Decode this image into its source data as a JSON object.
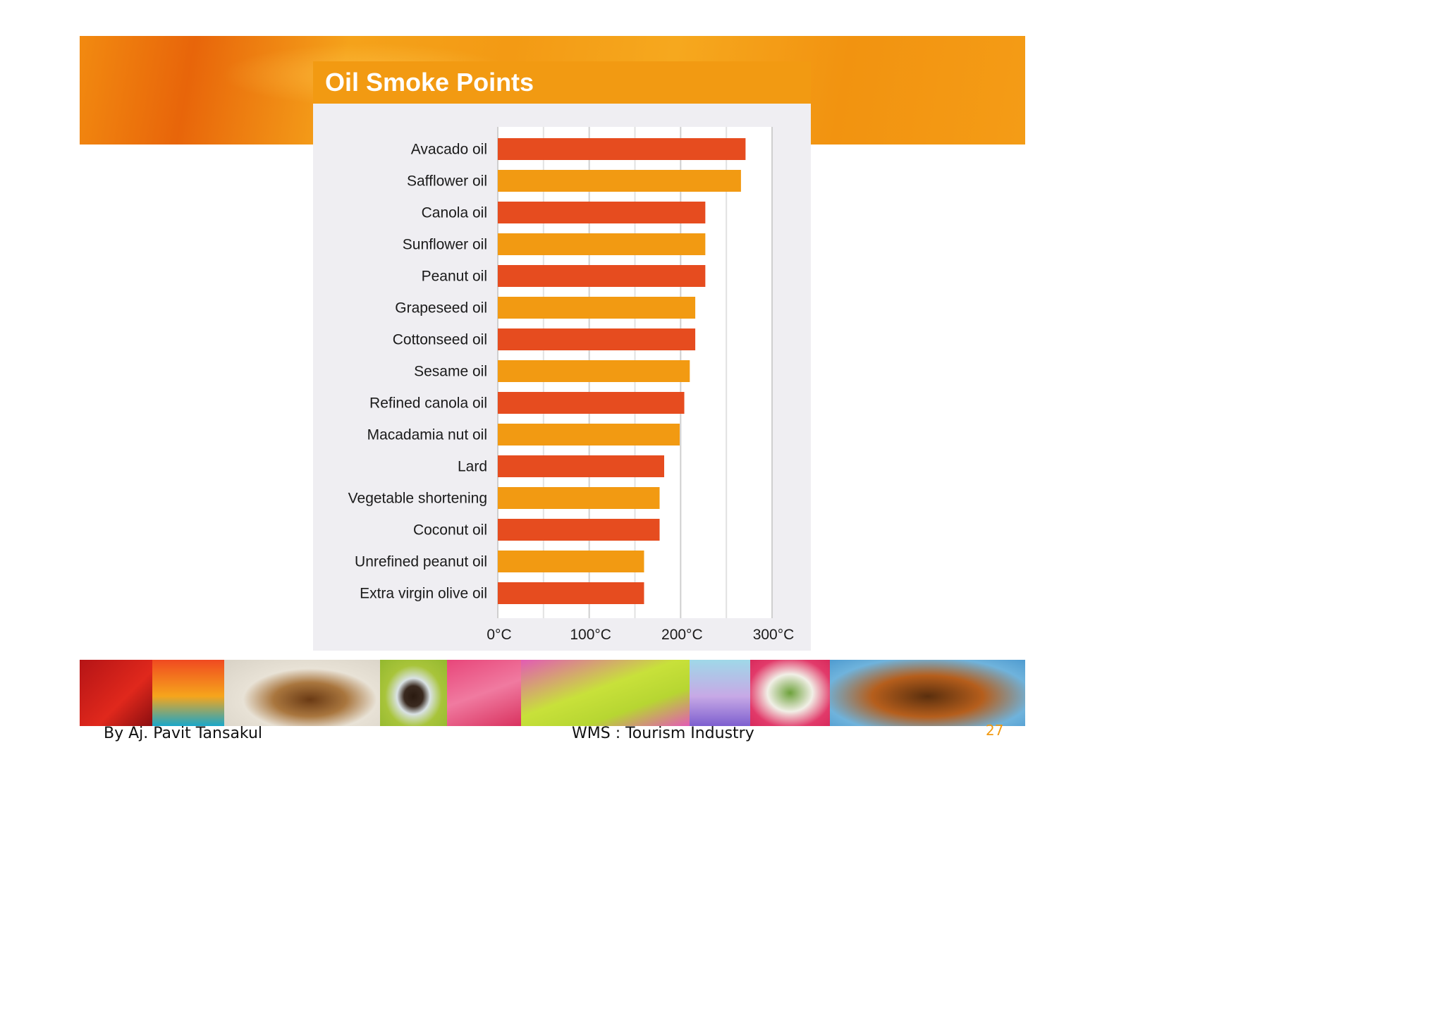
{
  "slide": {
    "title": "Oil Smoke Points",
    "author": "By Aj. Pavit Tansakul",
    "course": "WMS : Tourism Industry",
    "page_number": "27"
  },
  "colors": {
    "bar_red": "#e64c1f",
    "bar_orange": "#f29a12",
    "banner_orange": "#f29a12",
    "chart_bg": "#efeef2"
  },
  "chart_data": {
    "type": "bar",
    "orientation": "horizontal",
    "title": "Oil Smoke Points",
    "categories": [
      "Avacado oil",
      "Safflower oil",
      "Canola oil",
      "Sunflower oil",
      "Peanut oil",
      "Grapeseed oil",
      "Cottonseed oil",
      "Sesame oil",
      "Refined canola oil",
      "Macadamia nut oil",
      "Lard",
      "Vegetable shortening",
      "Coconut oil",
      "Unrefined peanut oil",
      "Extra virgin olive oil"
    ],
    "values": [
      271,
      266,
      227,
      227,
      227,
      216,
      216,
      210,
      204,
      199,
      182,
      177,
      177,
      160,
      160
    ],
    "bar_colors": [
      "#e64c1f",
      "#f29a12",
      "#e64c1f",
      "#f29a12",
      "#e64c1f",
      "#f29a12",
      "#e64c1f",
      "#f29a12",
      "#e64c1f",
      "#f29a12",
      "#e64c1f",
      "#f29a12",
      "#e64c1f",
      "#f29a12",
      "#e64c1f"
    ],
    "xlim": [
      0,
      300
    ],
    "xticks": [
      0,
      100,
      200,
      300
    ],
    "xtick_labels": [
      "0°C",
      "100°C",
      "200°C",
      "300°C"
    ],
    "grid": true,
    "legend": "none"
  }
}
